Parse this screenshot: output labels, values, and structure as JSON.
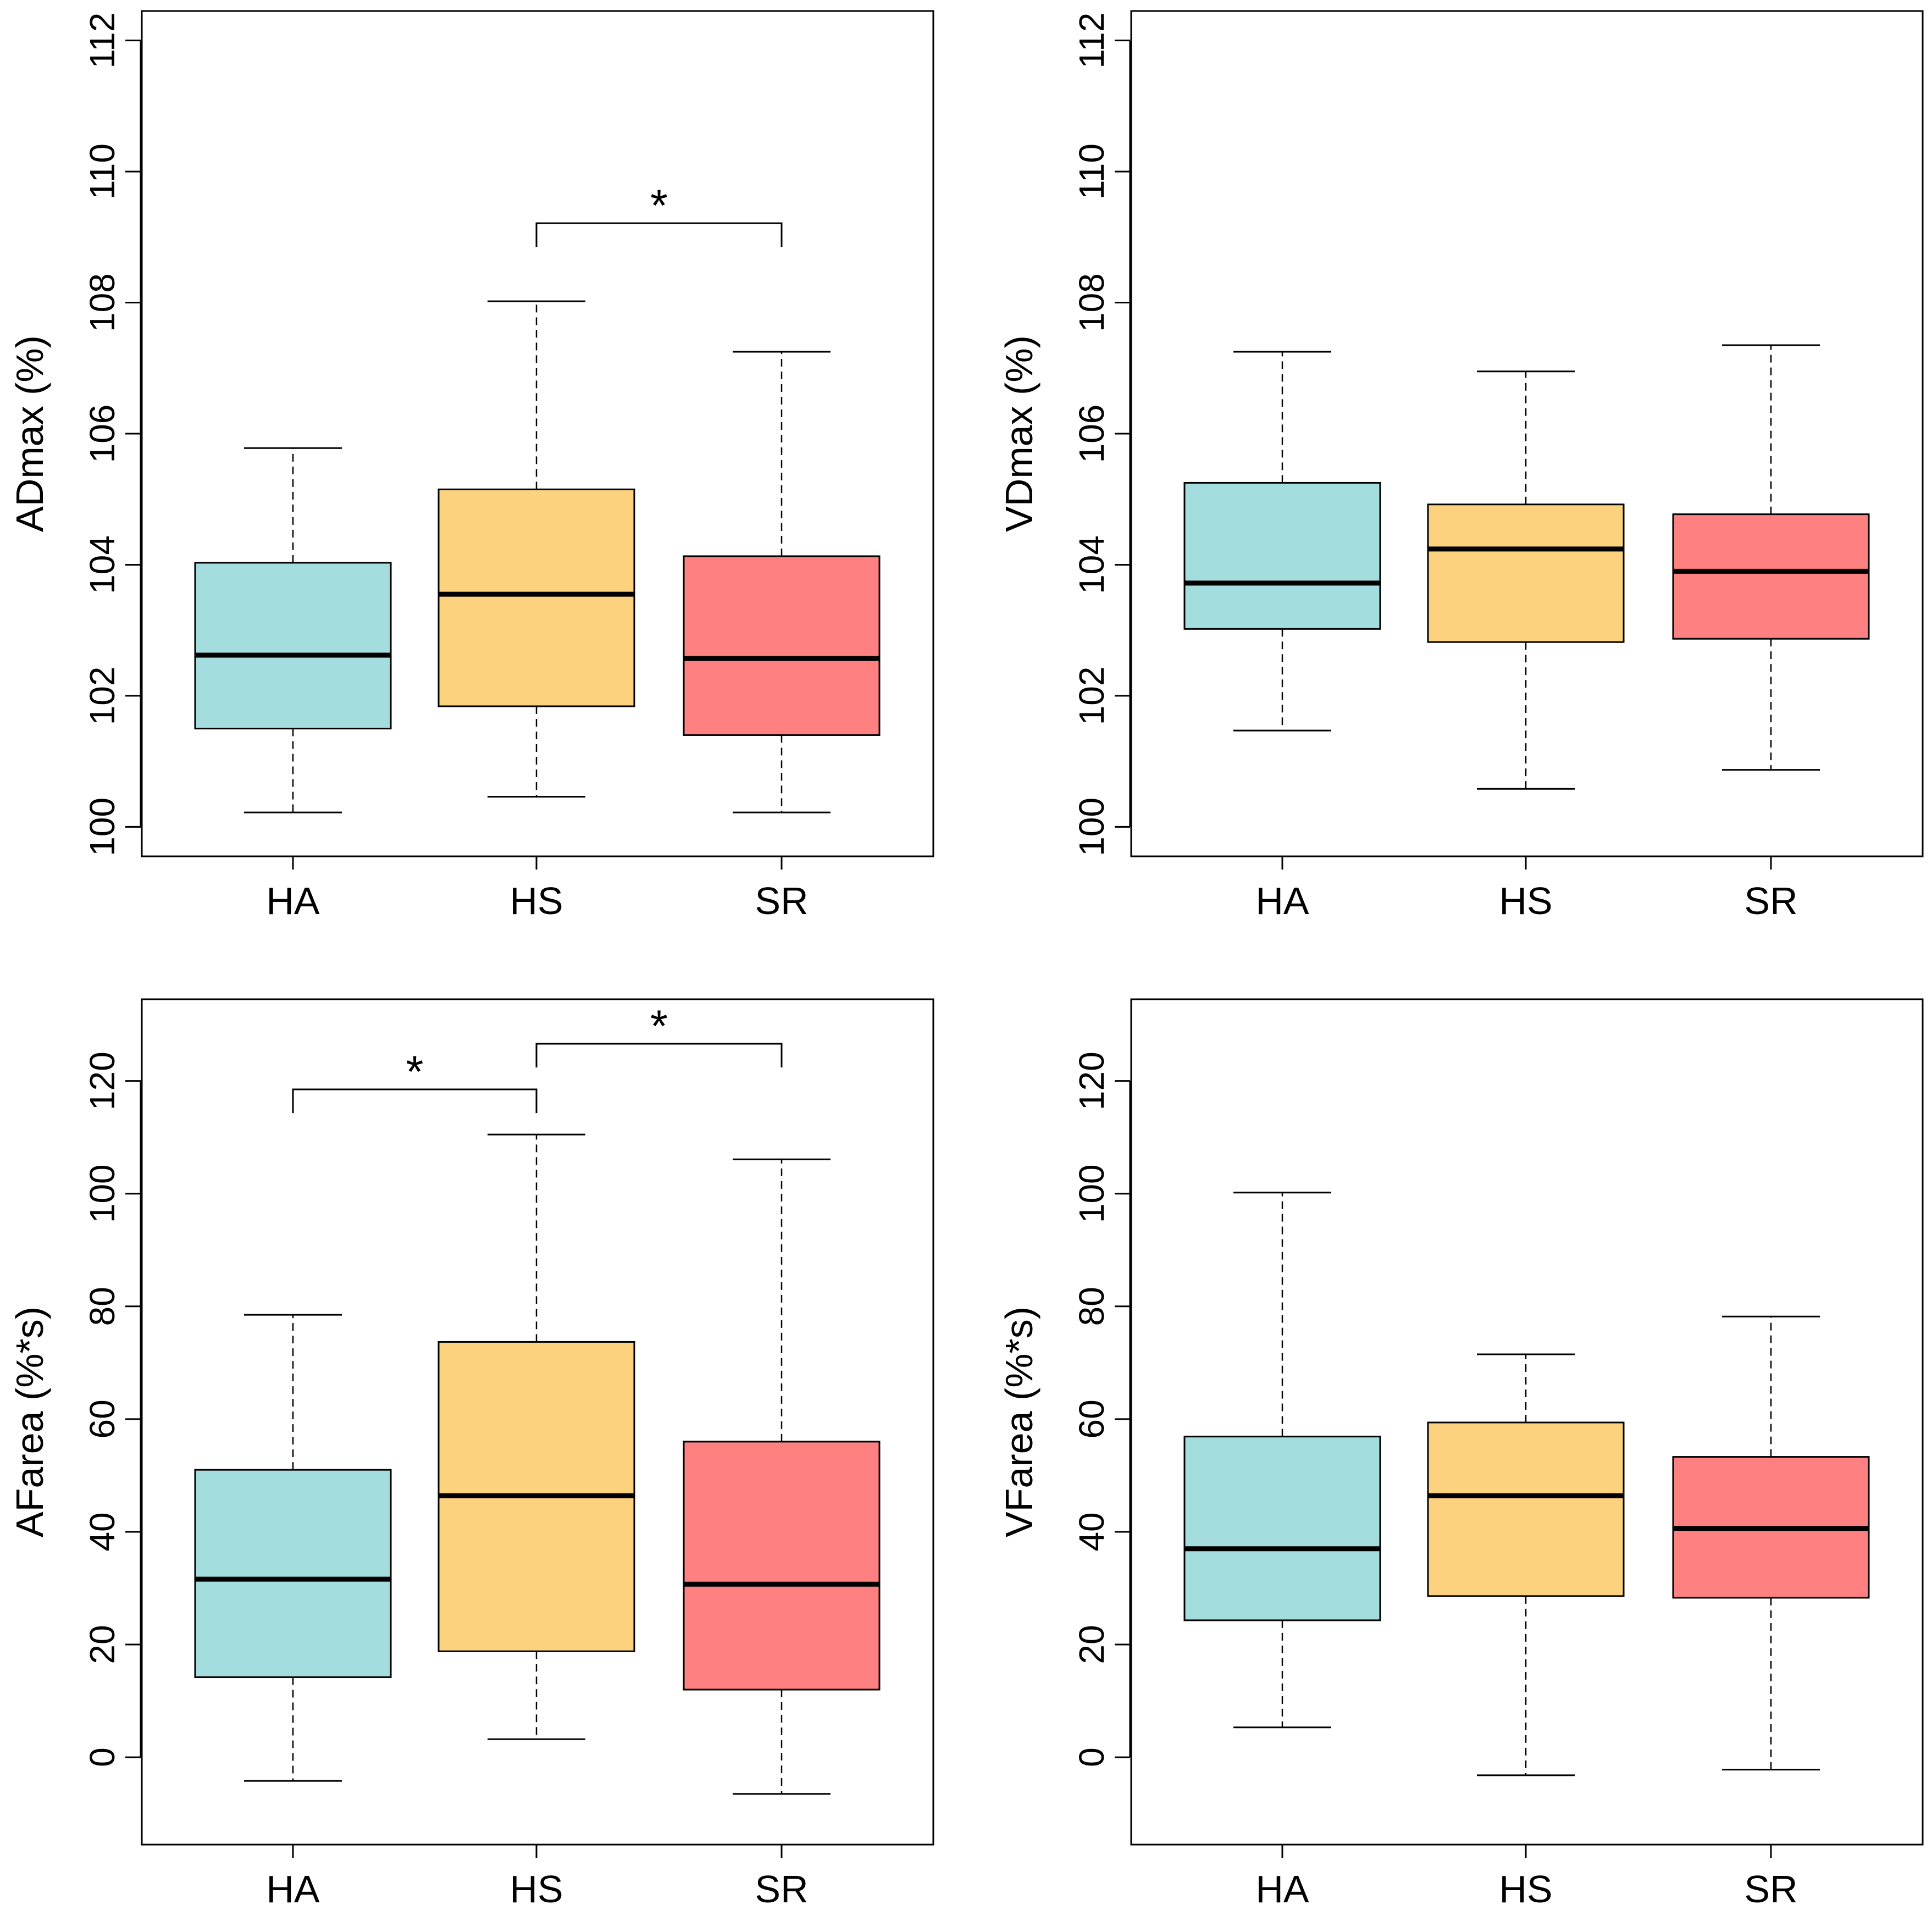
{
  "colors": {
    "HA": "#a4dddd",
    "HS": "#fdd27f",
    "SR": "#ff8080"
  },
  "chart_data": [
    {
      "type": "box",
      "ylabel": "ADmax (%)",
      "ylim": [
        99.55,
        112.45
      ],
      "yticks": [
        100,
        102,
        104,
        106,
        108,
        110,
        112
      ],
      "categories": [
        "HA",
        "HS",
        "SR"
      ],
      "boxes": [
        {
          "group": "HA",
          "min": 100.22,
          "q1": 101.5,
          "median": 102.62,
          "q3": 104.03,
          "max": 105.78
        },
        {
          "group": "HS",
          "min": 100.46,
          "q1": 101.84,
          "median": 103.55,
          "q3": 105.15,
          "max": 108.02
        },
        {
          "group": "SR",
          "min": 100.22,
          "q1": 101.4,
          "median": 102.57,
          "q3": 104.13,
          "max": 107.25
        }
      ],
      "significance": [
        {
          "from": "HS",
          "to": "SR",
          "y": 108.85,
          "label": "*"
        }
      ]
    },
    {
      "type": "box",
      "ylabel": "VDmax (%)",
      "ylim": [
        99.55,
        112.45
      ],
      "yticks": [
        100,
        102,
        104,
        106,
        108,
        110,
        112
      ],
      "categories": [
        "HA",
        "HS",
        "SR"
      ],
      "boxes": [
        {
          "group": "HA",
          "min": 101.47,
          "q1": 103.02,
          "median": 103.72,
          "q3": 105.25,
          "max": 107.25
        },
        {
          "group": "HS",
          "min": 100.58,
          "q1": 102.82,
          "median": 104.24,
          "q3": 104.92,
          "max": 106.95
        },
        {
          "group": "SR",
          "min": 100.87,
          "q1": 102.87,
          "median": 103.9,
          "q3": 104.77,
          "max": 107.35
        }
      ],
      "significance": []
    },
    {
      "type": "box",
      "ylabel": "AFarea (%*s)",
      "ylim": [
        -15.5,
        134.5
      ],
      "yticks": [
        0,
        20,
        40,
        60,
        80,
        100,
        120
      ],
      "categories": [
        "HA",
        "HS",
        "SR"
      ],
      "boxes": [
        {
          "group": "HA",
          "min": -4.2,
          "q1": 14.2,
          "median": 31.6,
          "q3": 51.0,
          "max": 78.5
        },
        {
          "group": "HS",
          "min": 3.2,
          "q1": 18.8,
          "median": 46.4,
          "q3": 73.7,
          "max": 110.5
        },
        {
          "group": "SR",
          "min": -6.5,
          "q1": 12.0,
          "median": 30.7,
          "q3": 56.0,
          "max": 106.1
        }
      ],
      "significance": [
        {
          "from": "HA",
          "to": "HS",
          "y": 114.3,
          "label": "*"
        },
        {
          "from": "HS",
          "to": "SR",
          "y": 122.4,
          "label": "*"
        }
      ]
    },
    {
      "type": "box",
      "ylabel": "VFarea (%*s)",
      "ylim": [
        -15.5,
        134.5
      ],
      "yticks": [
        0,
        20,
        40,
        60,
        80,
        100,
        120
      ],
      "categories": [
        "HA",
        "HS",
        "SR"
      ],
      "boxes": [
        {
          "group": "HA",
          "min": 5.3,
          "q1": 24.3,
          "median": 37.0,
          "q3": 56.9,
          "max": 100.2
        },
        {
          "group": "HS",
          "min": -3.2,
          "q1": 28.6,
          "median": 46.4,
          "q3": 59.4,
          "max": 71.5
        },
        {
          "group": "SR",
          "min": -2.2,
          "q1": 28.3,
          "median": 40.6,
          "q3": 53.3,
          "max": 78.2
        }
      ],
      "significance": []
    }
  ]
}
